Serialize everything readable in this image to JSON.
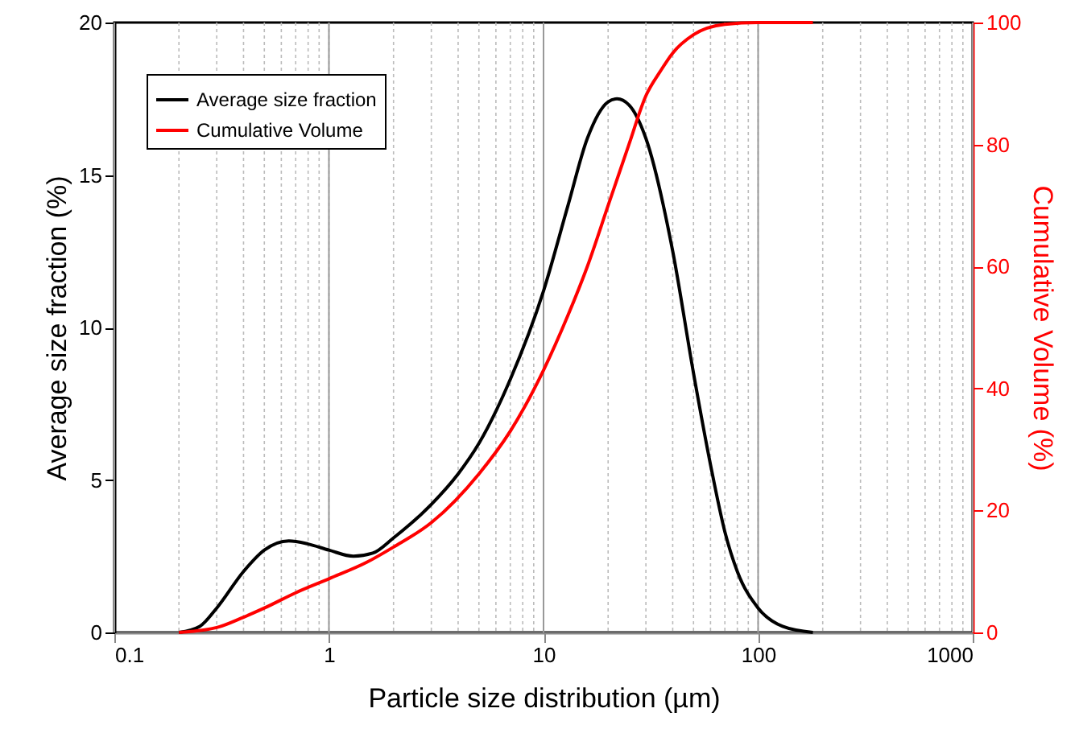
{
  "chart_data": {
    "type": "line",
    "xlabel": "Particle size distribution (µm)",
    "ylabel": "Average size fraction (%)",
    "y2label": "Cumulative Volume (%)",
    "log": "x",
    "xlim": [
      0.1,
      1000
    ],
    "xticks": [
      0.1,
      1,
      10,
      100,
      1000
    ],
    "ylim": [
      0,
      20
    ],
    "yticks": [
      0,
      5,
      10,
      15,
      20
    ],
    "y2lim": [
      0,
      100
    ],
    "y2ticks": [
      0,
      20,
      40,
      60,
      80,
      100
    ],
    "grid": "x",
    "legend": "top left",
    "marker": "none",
    "line_style": "solid",
    "series": [
      {
        "name": "Average size fraction",
        "color": "#000000",
        "x": [
          0.2,
          0.25,
          0.3,
          0.4,
          0.5,
          0.65,
          0.8,
          1.0,
          1.3,
          1.6,
          2,
          3,
          4,
          5,
          7,
          10,
          13,
          16,
          20,
          22,
          25,
          30,
          40,
          50,
          60,
          70,
          80,
          100,
          130,
          180
        ],
        "values": [
          0,
          0.2,
          0.8,
          2.0,
          2.7,
          3.0,
          2.9,
          2.7,
          2.5,
          2.6,
          3.1,
          4.2,
          5.2,
          6.2,
          8.3,
          11.2,
          14,
          16.2,
          17.4,
          17.5,
          17.3,
          16.2,
          12.5,
          8.5,
          5.5,
          3.3,
          2.0,
          0.8,
          0.2,
          0
        ]
      },
      {
        "name": "Cumulative Volume",
        "color": "#ff0000",
        "axis": "y2",
        "x": [
          0.2,
          0.3,
          0.4,
          0.5,
          0.7,
          1,
          1.5,
          2,
          3,
          5,
          7,
          10,
          13,
          16,
          20,
          25,
          30,
          35,
          40,
          50,
          70,
          100,
          180
        ],
        "values": [
          0,
          0.8,
          2.5,
          4,
          6.5,
          8.8,
          11.5,
          14,
          18,
          26,
          33,
          43,
          52,
          60,
          70,
          80,
          88,
          92,
          95,
          98,
          99.7,
          100,
          100
        ]
      }
    ]
  }
}
